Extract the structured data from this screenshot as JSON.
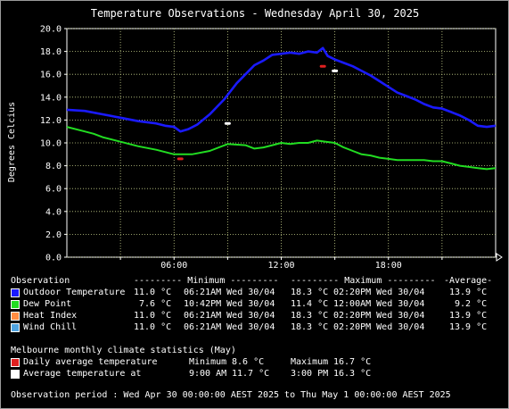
{
  "colors": {
    "outdoor": "#1a1aff",
    "dewpoint": "#22dd22",
    "heatindex": "#ff8c42",
    "windchill": "#4fa3e0",
    "daily_avg": "#e02020",
    "avg_temp": "#ffffff",
    "grid": "#c8d28c"
  },
  "chart_data": {
    "type": "line",
    "title": "Temperature Observations - Wednesday April 30, 2025",
    "ylabel": "Degrees Celcius",
    "xlabel": "",
    "ylim": [
      0,
      20
    ],
    "xlim": [
      0,
      24
    ],
    "yticks": [
      "0.0",
      "2.0",
      "4.0",
      "6.0",
      "8.0",
      "10.0",
      "12.0",
      "14.0",
      "16.0",
      "18.0",
      "20.0"
    ],
    "xticks": [
      {
        "h": 6,
        "label": "06:00"
      },
      {
        "h": 12,
        "label": "12:00"
      },
      {
        "h": 18,
        "label": "18:00"
      }
    ],
    "grid": true,
    "series": [
      {
        "name": "Outdoor Temperature",
        "color": "#1a1aff",
        "x": [
          0,
          1,
          2,
          3,
          4,
          5,
          5.5,
          6,
          6.35,
          6.8,
          7.3,
          8,
          8.8,
          9.5,
          10,
          10.5,
          11,
          11.5,
          12,
          12.5,
          13,
          13.5,
          14,
          14.33,
          14.6,
          15,
          15.5,
          16,
          16.5,
          17,
          17.5,
          18,
          18.5,
          19,
          19.5,
          20,
          20.5,
          21,
          21.5,
          22,
          22.5,
          23,
          23.5,
          24
        ],
        "y": [
          12.9,
          12.8,
          12.5,
          12.2,
          11.9,
          11.7,
          11.5,
          11.4,
          11.0,
          11.2,
          11.6,
          12.5,
          13.8,
          15.2,
          16.0,
          16.8,
          17.2,
          17.7,
          17.8,
          17.9,
          17.8,
          18.0,
          17.9,
          18.3,
          17.6,
          17.3,
          17.0,
          16.7,
          16.3,
          15.9,
          15.4,
          14.9,
          14.4,
          14.1,
          13.8,
          13.4,
          13.1,
          13.0,
          12.7,
          12.4,
          12.0,
          11.5,
          11.4,
          11.5
        ]
      },
      {
        "name": "Dew Point",
        "color": "#22dd22",
        "x": [
          0,
          1,
          1.5,
          2,
          3,
          4,
          5,
          6,
          7,
          8,
          9,
          10,
          10.5,
          11,
          11.5,
          12,
          12.5,
          13,
          13.5,
          14,
          14.5,
          15,
          15.5,
          16,
          16.5,
          17,
          17.5,
          18,
          18.5,
          19,
          19.5,
          20,
          20.5,
          21,
          21.5,
          22,
          22.5,
          23,
          23.5,
          24
        ],
        "y": [
          11.4,
          11.0,
          10.8,
          10.5,
          10.1,
          9.7,
          9.4,
          9.0,
          9.0,
          9.3,
          9.9,
          9.8,
          9.5,
          9.6,
          9.8,
          10.0,
          9.9,
          10.0,
          10.0,
          10.2,
          10.1,
          10.0,
          9.6,
          9.3,
          9.0,
          8.9,
          8.7,
          8.6,
          8.5,
          8.5,
          8.5,
          8.5,
          8.4,
          8.4,
          8.2,
          8.0,
          7.9,
          7.8,
          7.7,
          7.8
        ]
      },
      {
        "name": "Daily average temperature",
        "color": "#e02020",
        "points": [
          {
            "x": 6.35,
            "y": 8.6
          },
          {
            "x": 14.33,
            "y": 16.7
          }
        ]
      },
      {
        "name": "Average temperature at",
        "color": "#ffffff",
        "points": [
          {
            "x": 9.0,
            "y": 11.7
          },
          {
            "x": 15.0,
            "y": 16.3
          }
        ]
      }
    ]
  },
  "legend": {
    "header": {
      "observation": "Observation",
      "minimum": "--------- Minimum ---------",
      "maximum": "--------- Maximum ---------",
      "average": "-Average-"
    },
    "rows": [
      {
        "label": "Outdoor Temperature",
        "min_val": "11.0 °C",
        "min_time": "06:21AM Wed 30/04",
        "max_val": "18.3 °C",
        "max_time": "02:20PM Wed 30/04",
        "avg": "13.9 °C"
      },
      {
        "label": "Dew Point",
        "min_val": "7.6 °C",
        "min_time": "10:42PM Wed 30/04",
        "max_val": "11.4 °C",
        "max_time": "12:00AM Wed 30/04",
        "avg": "9.2 °C"
      },
      {
        "label": "Heat Index",
        "min_val": "11.0 °C",
        "min_time": "06:21AM Wed 30/04",
        "max_val": "18.3 °C",
        "max_time": "02:20PM Wed 30/04",
        "avg": "13.9 °C"
      },
      {
        "label": "Wind Chill",
        "min_val": "11.0 °C",
        "min_time": "06:21AM Wed 30/04",
        "max_val": "18.3 °C",
        "max_time": "02:20PM Wed 30/04",
        "avg": "13.9 °C"
      }
    ]
  },
  "climate": {
    "title": "Melbourne monthly climate statistics (May)",
    "daily": {
      "label": "Daily average temperature",
      "min_label": "Minimum",
      "min_val": "8.6 °C",
      "max_label": "Maximum",
      "max_val": "16.7 °C"
    },
    "avg_at": {
      "label": "Average temperature at",
      "t1": "9:00 AM",
      "v1": "11.7 °C",
      "t2": "3:00 PM",
      "v2": "16.3 °C"
    }
  },
  "observation_period": "Observation period : Wed Apr 30 00:00:00 AEST 2025 to Thu May 1 00:00:00 AEST 2025"
}
